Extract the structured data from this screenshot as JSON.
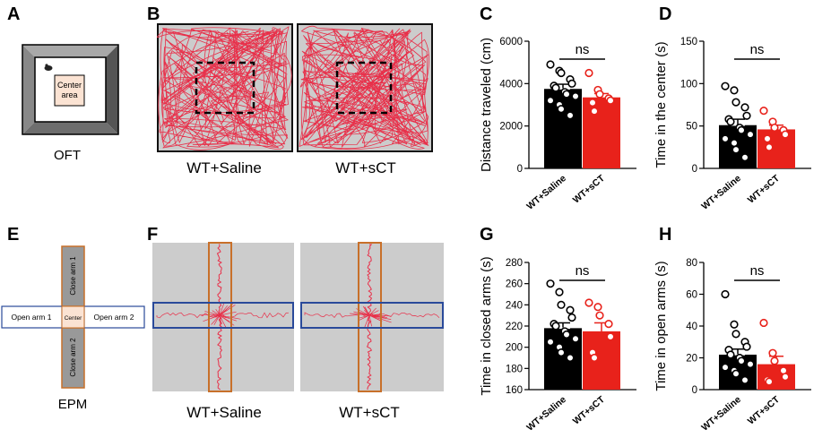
{
  "panel_labels": [
    "A",
    "B",
    "C",
    "D",
    "E",
    "F",
    "G",
    "H"
  ],
  "schematic_oft": {
    "center_label_1": "Center",
    "center_label_2": "area",
    "caption": "OFT"
  },
  "schematic_epm": {
    "close_arm_top": "Close arm 1",
    "close_arm_bottom": "Close arm 2",
    "open_arm_left": "Open arm 1",
    "open_arm_right": "Open arm 2",
    "center": "Center",
    "caption": "EPM"
  },
  "tracks_oft": {
    "left_label": "WT+Saline",
    "right_label": "WT+sCT"
  },
  "tracks_epm": {
    "left_label": "WT+Saline",
    "right_label": "WT+sCT"
  },
  "colors": {
    "saline": "#000000",
    "sct": "#e8221b",
    "track": "#e8304a",
    "closed_arm": "#c8702a",
    "open_arm": "#2a4a9a",
    "arena": "#cccccc"
  },
  "chart_data": [
    {
      "panel": "C",
      "type": "bar",
      "title": "",
      "ylabel": "Distance traveled (cm)",
      "categories": [
        "WT+Saline",
        "WT+sCT"
      ],
      "ylim": [
        0,
        6000
      ],
      "yticks": [
        0,
        2000,
        4000,
        6000
      ],
      "values": [
        3750,
        3350
      ],
      "errors": [
        220,
        180
      ],
      "points": [
        [
          4900,
          4600,
          4500,
          4200,
          4000,
          3900,
          3800,
          3600,
          3500,
          3400,
          3200,
          3000,
          2800,
          2500
        ],
        [
          4500,
          3700,
          3500,
          3300,
          3200,
          3100,
          2700
        ]
      ],
      "significance": "ns"
    },
    {
      "panel": "D",
      "type": "bar",
      "title": "",
      "ylabel": "Time in the center (s)",
      "categories": [
        "WT+Saline",
        "WT+sCT"
      ],
      "ylim": [
        0,
        150
      ],
      "yticks": [
        0,
        50,
        100,
        150
      ],
      "values": [
        51,
        46
      ],
      "errors": [
        7,
        5
      ],
      "points": [
        [
          97,
          92,
          78,
          72,
          62,
          58,
          55,
          48,
          45,
          40,
          35,
          30,
          22,
          13
        ],
        [
          68,
          55,
          48,
          45,
          40,
          35,
          25
        ]
      ],
      "significance": "ns"
    },
    {
      "panel": "G",
      "type": "bar",
      "title": "",
      "ylabel": "Time in closed arms (s)",
      "categories": [
        "WT+Saline",
        "WT+sCT"
      ],
      "ylim": [
        160,
        280
      ],
      "yticks": [
        160,
        180,
        200,
        220,
        240,
        260,
        280
      ],
      "values": [
        218,
        215
      ],
      "errors": [
        5,
        8
      ],
      "points": [
        [
          260,
          252,
          240,
          235,
          228,
          222,
          220,
          215,
          212,
          208,
          205,
          200,
          195,
          190
        ],
        [
          242,
          238,
          230,
          222,
          210,
          195,
          190
        ]
      ],
      "significance": "ns"
    },
    {
      "panel": "H",
      "type": "bar",
      "title": "",
      "ylabel": "Time in open arms (s)",
      "categories": [
        "WT+Saline",
        "WT+sCT"
      ],
      "ylim": [
        0,
        80
      ],
      "yticks": [
        0,
        20,
        40,
        60,
        80
      ],
      "values": [
        22,
        16
      ],
      "errors": [
        3.5,
        5
      ],
      "points": [
        [
          60,
          41,
          35,
          30,
          27,
          25,
          22,
          20,
          18,
          16,
          14,
          12,
          10,
          6
        ],
        [
          42,
          23,
          18,
          12,
          8,
          6,
          5
        ]
      ],
      "significance": "ns"
    }
  ]
}
